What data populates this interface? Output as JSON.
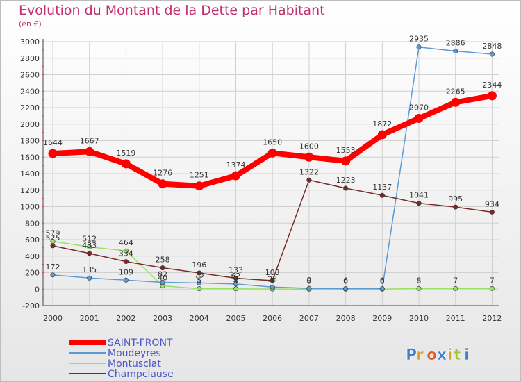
{
  "title": "Evolution du Montant de la Dette par Habitant",
  "subtitle": "(en €)",
  "logo": "Proxiti",
  "colors": {
    "saint_front": "#ff0000",
    "moudeyres": "#5a9ad6",
    "montusclat": "#99e066",
    "champclause": "#7a2a2a"
  },
  "chart_data": {
    "type": "line",
    "title": "Evolution du Montant de la Dette par Habitant",
    "ylabel": "(en €)",
    "x": [
      "2000",
      "2001",
      "2002",
      "2003",
      "2004",
      "2005",
      "2006",
      "2007",
      "2008",
      "2009",
      "2010",
      "2011",
      "2012"
    ],
    "ylim": [
      -200,
      3000
    ],
    "yticks": [
      "-200",
      "0",
      "200",
      "400",
      "600",
      "800",
      "1000",
      "1200",
      "1400",
      "1600",
      "1800",
      "2000",
      "2200",
      "2400",
      "2600",
      "2800",
      "3000"
    ],
    "grid": true,
    "legend": "bottom-left",
    "series": [
      {
        "name": "SAINT-FRONT",
        "values": [
          1644,
          1667,
          1519,
          1276,
          1251,
          1374,
          1650,
          1600,
          1553,
          1872,
          2070,
          2265,
          2344
        ],
        "labels": [
          "1644",
          "1667",
          "1519",
          "1276",
          "1251",
          "1374",
          "1650",
          "1600",
          "1553",
          "1872",
          "2070",
          "2265",
          "2344"
        ]
      },
      {
        "name": "Moudeyres",
        "values": [
          172,
          135,
          109,
          82,
          75,
          62,
          25,
          9,
          6,
          6,
          2935,
          2886,
          2848
        ],
        "labels": [
          "172",
          "135",
          "109",
          "82",
          "75",
          "62",
          "25",
          "9",
          "6",
          "6",
          "2935",
          "2886",
          "2848"
        ]
      },
      {
        "name": "Montusclat",
        "values": [
          579,
          512,
          464,
          40,
          5,
          4,
          1,
          0,
          0,
          0,
          8,
          7,
          7
        ],
        "labels": [
          "579",
          "512",
          "464",
          "40",
          "5",
          "4",
          "1",
          "0",
          "0",
          "0",
          "8",
          "7",
          "7"
        ]
      },
      {
        "name": "Champclause",
        "values": [
          525,
          433,
          334,
          258,
          196,
          133,
          103,
          1322,
          1223,
          1137,
          1041,
          995,
          934
        ],
        "labels": [
          "525",
          "433",
          "334",
          "258",
          "196",
          "133",
          "103",
          "1322",
          "1223",
          "1137",
          "1041",
          "995",
          "934"
        ]
      }
    ]
  }
}
